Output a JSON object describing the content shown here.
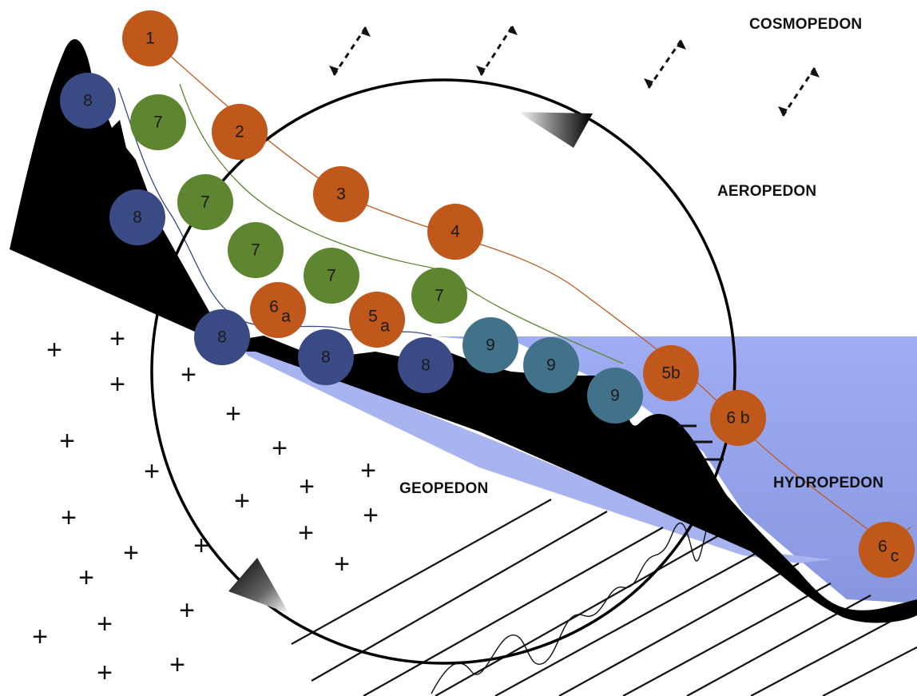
{
  "zones": {
    "cosmopedon": "COSMOPEDON",
    "aeropedon": "AEROPEDON",
    "geopedon": "GEOPEDON",
    "hydropedon": "HYDROPEDON"
  },
  "colors": {
    "orange": "#c0571b",
    "green": "#5e8530",
    "navy": "#3a4a85",
    "teal": "#41728a",
    "water": "#9aa8f0",
    "rock": "#000000"
  },
  "nodes": [
    {
      "id": "orange-1",
      "label": "1",
      "color": "orange"
    },
    {
      "id": "orange-2",
      "label": "2",
      "color": "orange"
    },
    {
      "id": "orange-3",
      "label": "3",
      "color": "orange"
    },
    {
      "id": "orange-4",
      "label": "4",
      "color": "orange"
    },
    {
      "id": "orange-5a",
      "label": "5",
      "sub": "a",
      "color": "orange"
    },
    {
      "id": "orange-6a",
      "label": "6",
      "sub": "a",
      "color": "orange"
    },
    {
      "id": "orange-5b",
      "label": "5b",
      "color": "orange"
    },
    {
      "id": "orange-6b",
      "label": "6 b",
      "color": "orange"
    },
    {
      "id": "orange-6c",
      "label": "6",
      "sub": "c",
      "color": "orange"
    },
    {
      "id": "green-7-a",
      "label": "7",
      "color": "green"
    },
    {
      "id": "green-7-b",
      "label": "7",
      "color": "green"
    },
    {
      "id": "green-7-c",
      "label": "7",
      "color": "green"
    },
    {
      "id": "green-7-d",
      "label": "7",
      "color": "green"
    },
    {
      "id": "green-7-e",
      "label": "7",
      "color": "green"
    },
    {
      "id": "navy-8-a",
      "label": "8",
      "color": "navy"
    },
    {
      "id": "navy-8-b",
      "label": "8",
      "color": "navy"
    },
    {
      "id": "navy-8-c",
      "label": "8",
      "color": "navy"
    },
    {
      "id": "navy-8-d",
      "label": "8",
      "color": "navy"
    },
    {
      "id": "navy-8-e",
      "label": "8",
      "color": "navy"
    },
    {
      "id": "teal-9-a",
      "label": "9",
      "color": "teal"
    },
    {
      "id": "teal-9-b",
      "label": "9",
      "color": "teal"
    },
    {
      "id": "teal-9-c",
      "label": "9",
      "color": "teal"
    }
  ],
  "plus_symbol": "+"
}
